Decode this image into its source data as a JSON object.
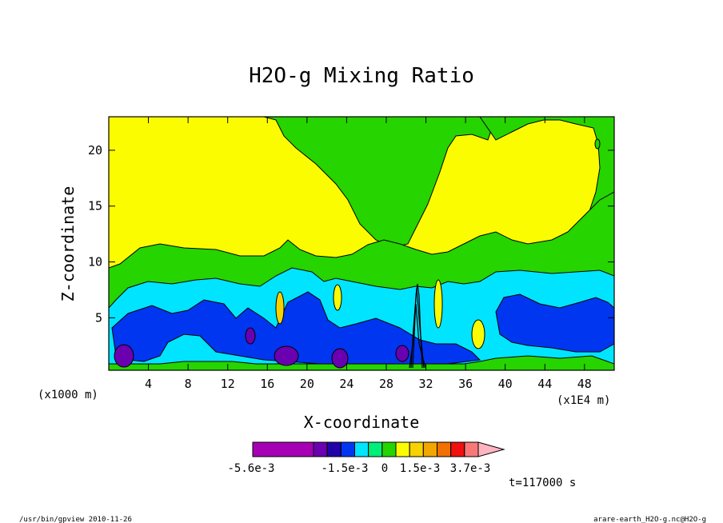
{
  "chart_data": {
    "type": "heatmap",
    "title": "H2O-g Mixing Ratio",
    "xlabel": "X-coordinate",
    "ylabel": "Z-coordinate",
    "x_unit_left": "(x1000 m)",
    "x_unit_right": "(x1E4 m)",
    "x_ticks": [
      "4",
      "8",
      "12",
      "16",
      "20",
      "24",
      "28",
      "32",
      "36",
      "40",
      "44",
      "48"
    ],
    "y_ticks": [
      "5",
      "10",
      "15",
      "20"
    ],
    "xlim": [
      0,
      51
    ],
    "ylim": [
      0.3,
      23
    ],
    "colorbar": {
      "colors": [
        "#a600b4",
        "#6a00b0",
        "#2200a8",
        "#0036f0",
        "#00e4ff",
        "#00ee7a",
        "#26d400",
        "#fcfc00",
        "#f6d200",
        "#f2a600",
        "#f07000",
        "#f01010",
        "#f87878",
        "#ffb4c0"
      ],
      "labels": [
        "-5.6e-3",
        "-1.5e-3",
        "0",
        "1.5e-3",
        "3.7e-3"
      ]
    },
    "regions": [
      {
        "name": "Yellow background (0 to 1.5e-3)",
        "color": "#fcfc00"
      },
      {
        "name": "Green band (negative, near 0)",
        "color": "#26d400"
      },
      {
        "name": "Cyan band",
        "color": "#00e4ff"
      },
      {
        "name": "Blue core",
        "color": "#0036f0"
      },
      {
        "name": "Dark purple minima",
        "color": "#6a00b0"
      }
    ]
  },
  "time_label": "t=117000 s",
  "footer": {
    "left": "/usr/bin/gpview  2010-11-26",
    "right": "arare-earth_H2O-g.nc@H2O-g"
  }
}
